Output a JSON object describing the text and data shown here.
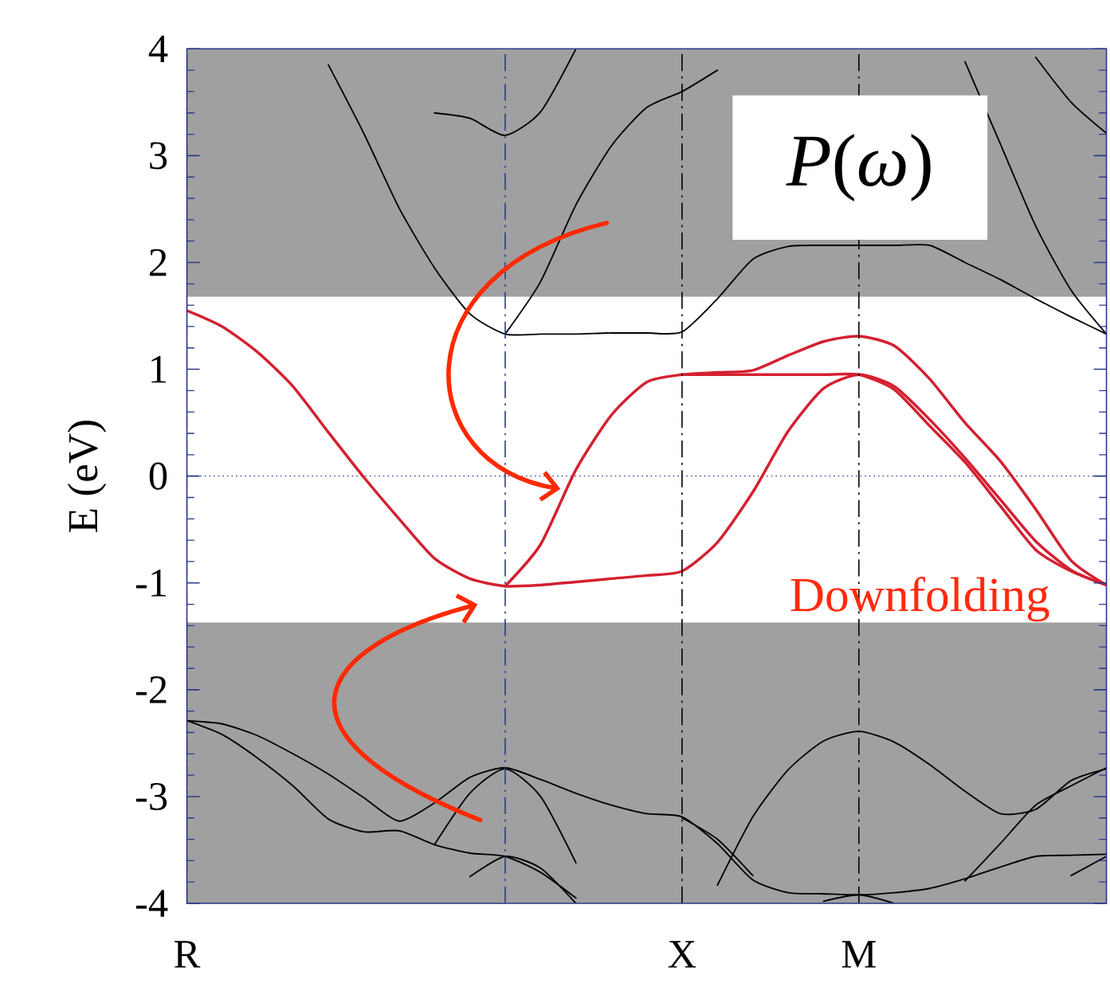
{
  "chart_data": {
    "type": "line",
    "ylabel": "E (eV)",
    "categories": [
      "R",
      null,
      null,
      null,
      null,
      null,
      null,
      null,
      null,
      null,
      null,
      null,
      null,
      null,
      "X",
      null,
      null,
      null,
      null,
      "M",
      null,
      null,
      null,
      null,
      null,
      null,
      null
    ],
    "ylim": [
      -4,
      4
    ],
    "yticks": [
      -4,
      -3,
      -2,
      -1,
      0,
      1,
      2,
      3,
      4
    ],
    "line_style": "solid",
    "bands": [
      {
        "axis": "y",
        "from": 1.68,
        "to": 4,
        "color": "#a0a0a0"
      },
      {
        "axis": "y",
        "from": -4,
        "to": -1.37,
        "color": "#a0a0a0"
      }
    ],
    "grid": "x",
    "ref_lines": [
      {
        "axis": "y",
        "value": 0,
        "color": "#2a3a8a",
        "line_style": "dotted"
      }
    ],
    "annotations": [
      "*P*(*ω*)",
      "Downfolding"
    ],
    "series": [
      {
        "color": "#000000",
        "values": [
          null,
          null,
          null,
          null,
          3.85,
          3.21,
          2.51,
          1.95,
          1.52,
          1.33,
          1.33,
          1.33,
          1.34,
          1.34,
          1.35,
          1.66,
          2.03,
          2.15,
          2.16,
          2.16,
          2.16,
          2.16,
          2.0,
          1.84,
          1.66,
          1.49,
          1.33
        ]
      },
      {
        "color": "#000000",
        "values": [
          null,
          null,
          null,
          null,
          null,
          null,
          null,
          3.4,
          3.35,
          3.19,
          3.41,
          4.0,
          null,
          null,
          null,
          null,
          null,
          null,
          null,
          null,
          null,
          null,
          null,
          null,
          null,
          null,
          null
        ]
      },
      {
        "color": "#000000",
        "values": [
          null,
          null,
          null,
          null,
          null,
          null,
          null,
          null,
          null,
          1.33,
          1.82,
          2.54,
          3.09,
          3.45,
          3.6,
          3.8,
          null,
          null,
          null,
          null,
          null,
          null,
          null,
          null,
          null,
          null,
          null
        ]
      },
      {
        "color": "#000000",
        "values": [
          null,
          null,
          null,
          null,
          null,
          null,
          null,
          null,
          null,
          null,
          null,
          null,
          null,
          null,
          null,
          null,
          null,
          null,
          null,
          null,
          null,
          null,
          3.88,
          3.11,
          2.34,
          1.74,
          1.33
        ]
      },
      {
        "color": "#000000",
        "values": [
          null,
          null,
          null,
          null,
          null,
          null,
          null,
          null,
          null,
          null,
          null,
          null,
          null,
          null,
          null,
          null,
          null,
          null,
          null,
          null,
          null,
          null,
          null,
          null,
          3.92,
          3.5,
          3.21
        ]
      },
      {
        "color": "#000000",
        "values": [
          -2.29,
          -2.32,
          -2.43,
          -2.6,
          -2.79,
          -3.01,
          -3.23,
          -3.06,
          -2.82,
          -2.73,
          -2.84,
          -2.97,
          -3.08,
          -3.16,
          -3.19,
          -3.44,
          -3.78,
          -3.9,
          -3.91,
          -3.92,
          -3.9,
          -3.86,
          -3.77,
          -3.66,
          -3.56,
          -3.55,
          -3.54
        ]
      },
      {
        "color": "#000000",
        "values": [
          -2.29,
          -2.42,
          -2.64,
          -2.9,
          -3.21,
          -3.33,
          -3.32,
          -3.45,
          -3.53,
          -3.56,
          -3.71,
          -3.95,
          null,
          null,
          null,
          null,
          null,
          null,
          null,
          null,
          null,
          null,
          null,
          null,
          null,
          null,
          null
        ]
      },
      {
        "color": "#000000",
        "values": [
          null,
          null,
          null,
          null,
          null,
          null,
          null,
          -3.45,
          -2.97,
          -2.74,
          -3.0,
          -3.62,
          null,
          null,
          null,
          null,
          null,
          null,
          null,
          null,
          null,
          null,
          null,
          null,
          null,
          null,
          null
        ]
      },
      {
        "color": "#000000",
        "values": [
          null,
          null,
          null,
          null,
          null,
          null,
          null,
          null,
          -3.75,
          -3.56,
          -3.67,
          -4.0,
          null,
          null,
          null,
          null,
          null,
          null,
          null,
          null,
          null,
          null,
          null,
          null,
          null,
          null,
          null
        ]
      },
      {
        "color": "#000000",
        "values": [
          null,
          null,
          null,
          null,
          null,
          null,
          null,
          null,
          null,
          null,
          null,
          null,
          null,
          null,
          null,
          -3.83,
          -3.19,
          -2.75,
          -2.48,
          -2.39,
          -2.49,
          -2.7,
          -2.95,
          -3.16,
          -3.12,
          -2.85,
          -2.74
        ]
      },
      {
        "color": "#000000",
        "values": [
          null,
          null,
          null,
          null,
          null,
          null,
          null,
          null,
          null,
          null,
          null,
          null,
          null,
          null,
          -3.2,
          -3.4,
          -3.74,
          null,
          null,
          null,
          null,
          null,
          null,
          null,
          null,
          null,
          null
        ]
      },
      {
        "color": "#000000",
        "values": [
          null,
          null,
          null,
          null,
          null,
          null,
          null,
          null,
          null,
          null,
          null,
          null,
          null,
          null,
          null,
          null,
          null,
          null,
          null,
          null,
          null,
          null,
          -3.79,
          -3.44,
          -3.08,
          -2.9,
          -2.73
        ]
      },
      {
        "color": "#000000",
        "values": [
          null,
          null,
          null,
          null,
          null,
          null,
          null,
          null,
          null,
          null,
          null,
          null,
          null,
          null,
          null,
          null,
          null,
          null,
          null,
          null,
          null,
          null,
          null,
          null,
          null,
          -3.74,
          -3.56
        ]
      },
      {
        "color": "#000000",
        "values": [
          null,
          null,
          null,
          null,
          null,
          null,
          null,
          null,
          null,
          null,
          null,
          null,
          null,
          null,
          null,
          null,
          null,
          null,
          -3.98,
          -3.92,
          -4.0,
          null,
          null,
          null,
          null,
          null,
          null
        ]
      },
      {
        "color": "#d42030",
        "values": [
          1.55,
          1.4,
          1.16,
          0.84,
          0.41,
          -0.01,
          -0.4,
          -0.77,
          -0.96,
          -1.03,
          -1.02,
          -0.99,
          -0.96,
          -0.93,
          -0.89,
          -0.62,
          -0.15,
          0.42,
          0.82,
          0.95,
          0.84,
          0.53,
          0.17,
          -0.22,
          -0.61,
          -0.88,
          -1.02
        ]
      },
      {
        "color": "#d42030",
        "values": [
          null,
          null,
          null,
          null,
          null,
          null,
          null,
          null,
          null,
          -1.03,
          -0.64,
          0.06,
          0.57,
          0.88,
          0.95,
          0.97,
          0.99,
          1.13,
          1.26,
          1.31,
          1.22,
          0.91,
          0.5,
          0.14,
          -0.31,
          -0.79,
          -1.02
        ]
      },
      {
        "color": "#d42030",
        "values": [
          null,
          null,
          null,
          null,
          null,
          null,
          null,
          null,
          null,
          null,
          null,
          null,
          null,
          null,
          0.95,
          0.95,
          0.95,
          0.95,
          0.95,
          0.95,
          0.81,
          0.47,
          0.13,
          -0.28,
          -0.69,
          -0.89,
          -1.02
        ]
      }
    ]
  }
}
